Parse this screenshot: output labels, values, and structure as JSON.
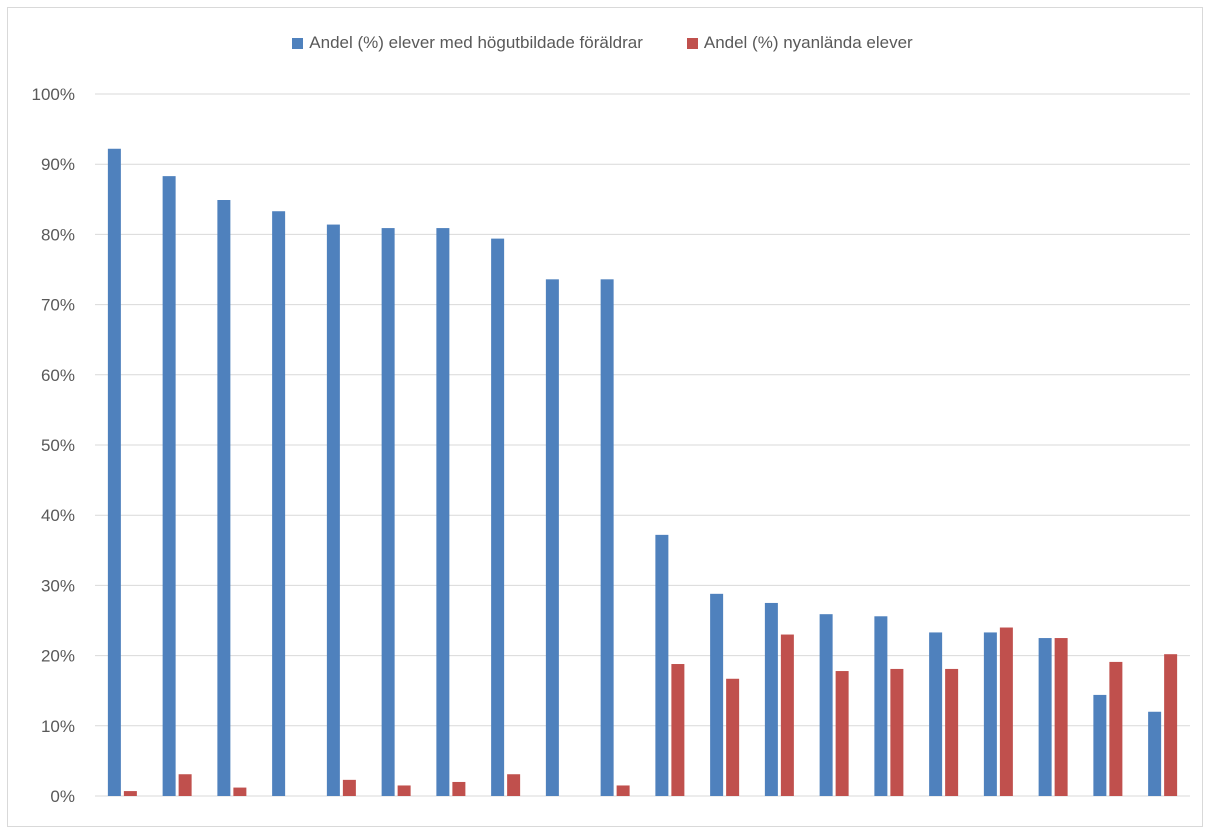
{
  "colors": {
    "series1": "#4F81BD",
    "series2": "#C0504D",
    "grid": "#d9d9d9",
    "text": "#595959"
  },
  "chart_data": {
    "type": "bar",
    "title": "",
    "xlabel": "",
    "ylabel": "",
    "ylim": [
      0,
      100
    ],
    "y_ticks": [
      "0%",
      "10%",
      "20%",
      "30%",
      "40%",
      "50%",
      "60%",
      "70%",
      "80%",
      "90%",
      "100%"
    ],
    "grid": true,
    "legend_position": "top",
    "categories": [
      "",
      "",
      "",
      "",
      "",
      "",
      "",
      "",
      "",
      "",
      "",
      "",
      "",
      "",
      "",
      "",
      "",
      "",
      "",
      ""
    ],
    "series": [
      {
        "name": "Andel (%) elever med högutbildade föräldrar",
        "values": [
          92.2,
          88.3,
          84.9,
          83.3,
          81.4,
          80.9,
          80.9,
          79.4,
          73.6,
          73.6,
          37.2,
          28.8,
          27.5,
          25.9,
          25.6,
          23.3,
          23.3,
          22.5,
          14.4,
          12.0
        ]
      },
      {
        "name": "Andel (%) nyanlända elever",
        "values": [
          0.7,
          3.1,
          1.2,
          0,
          2.3,
          1.5,
          2.0,
          3.1,
          0,
          1.5,
          18.8,
          16.7,
          23.0,
          17.8,
          18.1,
          18.1,
          24.0,
          22.5,
          19.1,
          20.2
        ]
      }
    ]
  }
}
